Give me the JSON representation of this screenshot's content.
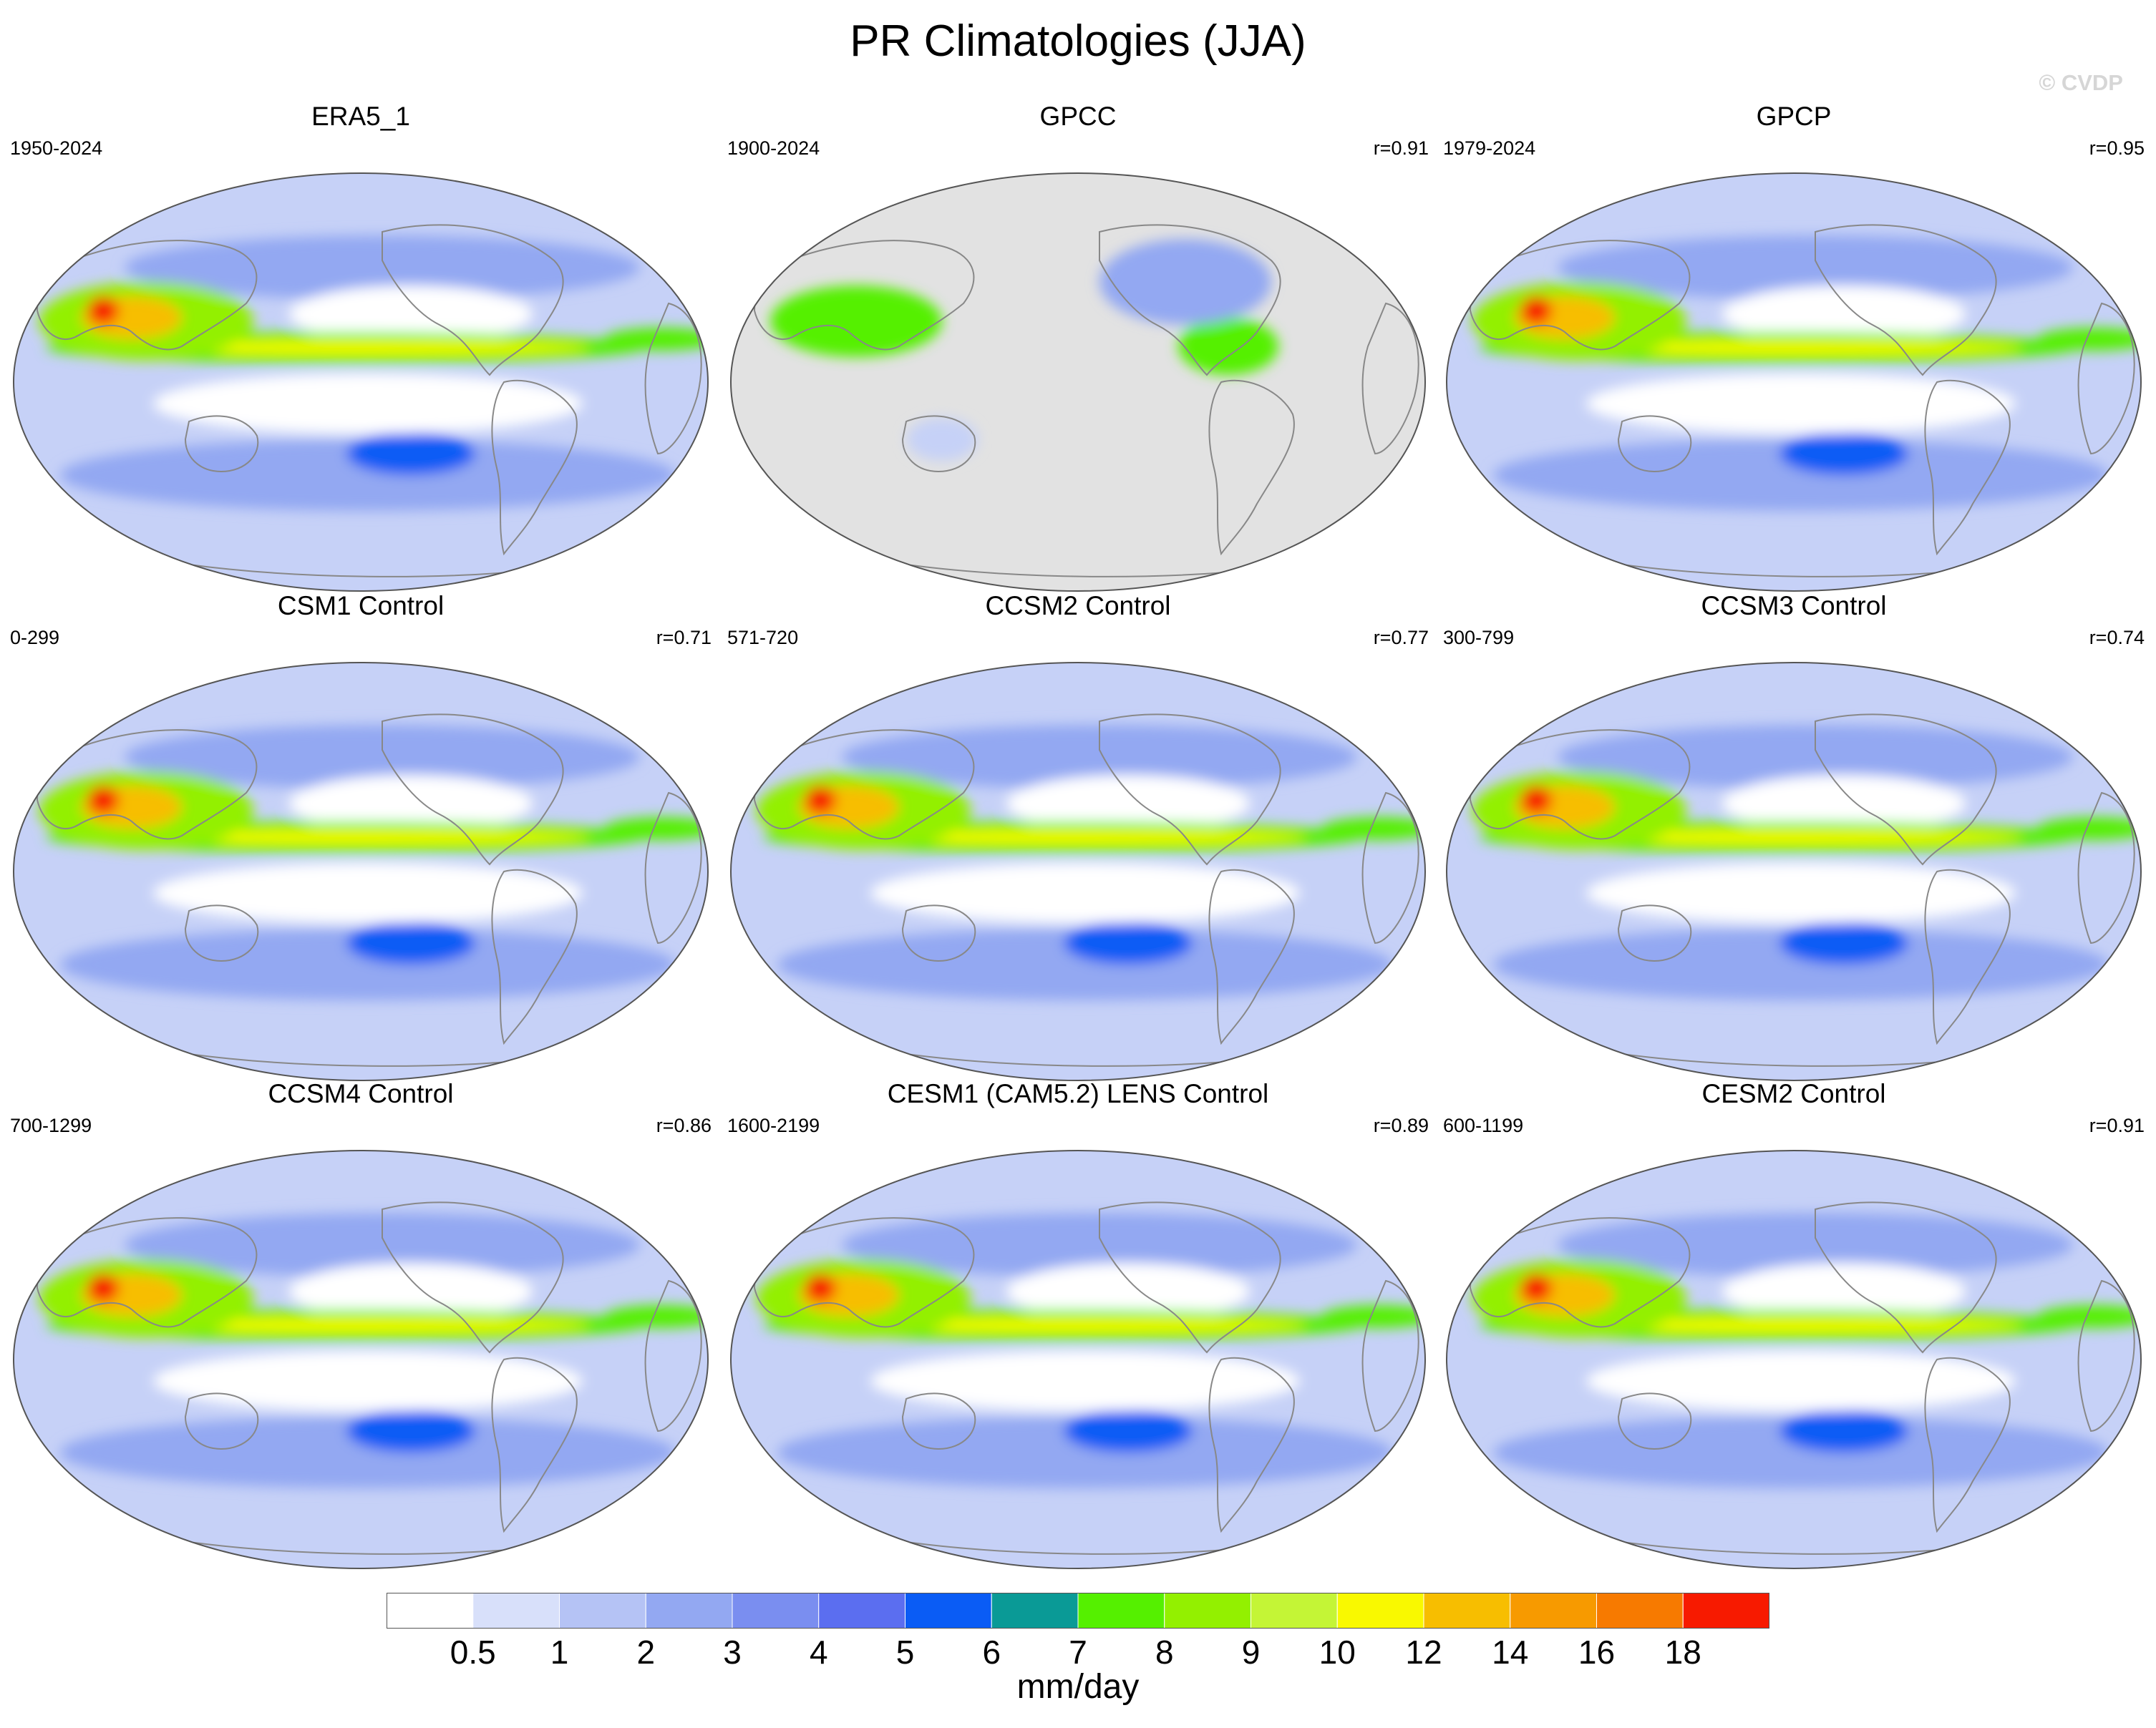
{
  "title": "PR Climatologies (JJA)",
  "watermark": "© CVDP",
  "panels": [
    {
      "title": "ERA5_1",
      "years": "1950-2024",
      "corr": "",
      "style": "obs"
    },
    {
      "title": "GPCC",
      "years": "1900-2024",
      "corr": "r=0.91",
      "style": "land"
    },
    {
      "title": "GPCP",
      "years": "1979-2024",
      "corr": "r=0.95",
      "style": "obs2"
    },
    {
      "title": "CSM1 Control",
      "years": "0-299",
      "corr": "r=0.71",
      "style": "csm1"
    },
    {
      "title": "CCSM2 Control",
      "years": "571-720",
      "corr": "r=0.77",
      "style": "ccsm2"
    },
    {
      "title": "CCSM3 Control",
      "years": "300-799",
      "corr": "r=0.74",
      "style": "ccsm3"
    },
    {
      "title": "CCSM4 Control",
      "years": "700-1299",
      "corr": "r=0.86",
      "style": "ccsm4"
    },
    {
      "title": "CESM1 (CAM5.2) LENS Control",
      "years": "1600-2199",
      "corr": "r=0.89",
      "style": "cesm1"
    },
    {
      "title": "CESM2 Control",
      "years": "600-1199",
      "corr": "r=0.91",
      "style": "cesm2"
    }
  ],
  "colorbar": {
    "labels": [
      "0.5",
      "1",
      "2",
      "3",
      "4",
      "5",
      "6",
      "7",
      "8",
      "9",
      "10",
      "12",
      "14",
      "16",
      "18"
    ],
    "colors": [
      "#ffffff",
      "#d8e0fa",
      "#b5c3f5",
      "#93a8f2",
      "#7a8ef0",
      "#5b6ef0",
      "#0a5cf5",
      "#0a9a96",
      "#55f000",
      "#93f000",
      "#c4f536",
      "#f9f900",
      "#f7be00",
      "#f79a00",
      "#f77a00",
      "#f71a00"
    ],
    "units": "mm/day"
  },
  "map_colors": {
    "ocean_light": "#c6d1f7",
    "ocean_mid": "#93a8f2",
    "ocean_dark": "#7a8ef0",
    "land_missing": "#e2e2e2",
    "coast": "#888888"
  }
}
